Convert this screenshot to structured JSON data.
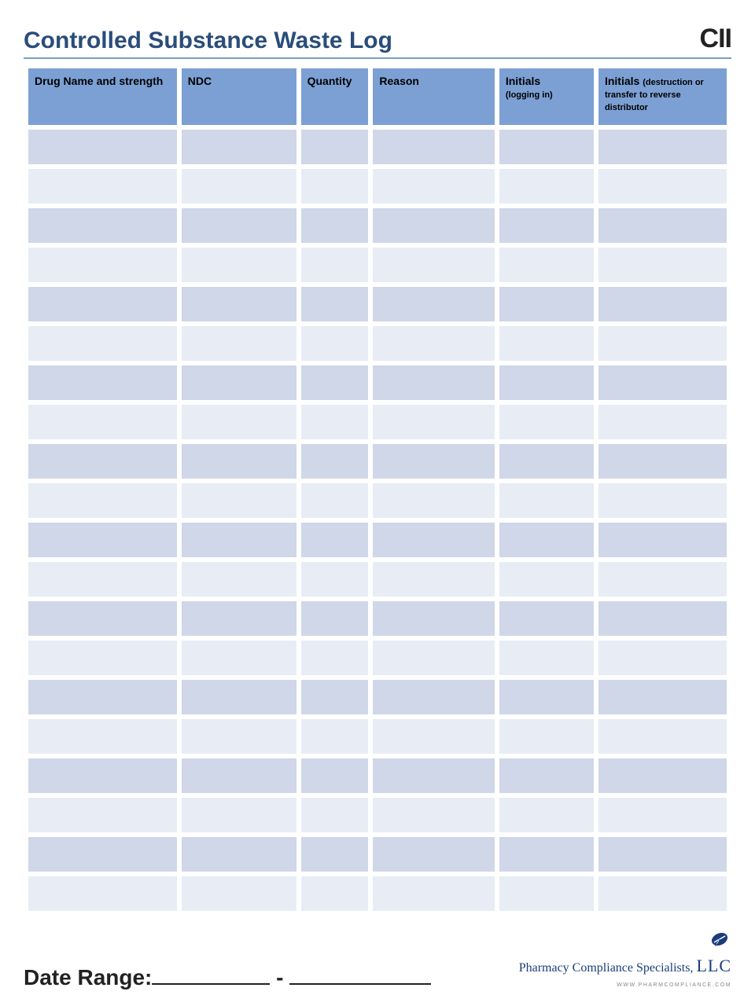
{
  "header": {
    "title": "Controlled Substance Waste Log",
    "schedule": "CII"
  },
  "table": {
    "columns": [
      {
        "label": "Drug Name and strength",
        "sub": ""
      },
      {
        "label": "NDC",
        "sub": ""
      },
      {
        "label": "Quantity",
        "sub": ""
      },
      {
        "label": "Reason",
        "sub": ""
      },
      {
        "label": "Initials",
        "sub": "(logging in)"
      },
      {
        "label": "Initials",
        "sub": "(destruction or transfer to reverse distributor"
      }
    ],
    "row_count": 20,
    "colors": {
      "header_bg": "#7ca0d4",
      "row_odd_bg": "#cfd7e8",
      "row_even_bg": "#e8ecf4"
    }
  },
  "footer": {
    "date_range_label": "Date Range:",
    "separator": "-",
    "company_name": "Pharmacy Compliance Specialists,",
    "company_suffix": "LLC",
    "url": "www.pharmcompliance.com"
  },
  "colors": {
    "title": "#2a4d7a",
    "rule": "#7a9cc6",
    "logo": "#1a3d7a"
  }
}
